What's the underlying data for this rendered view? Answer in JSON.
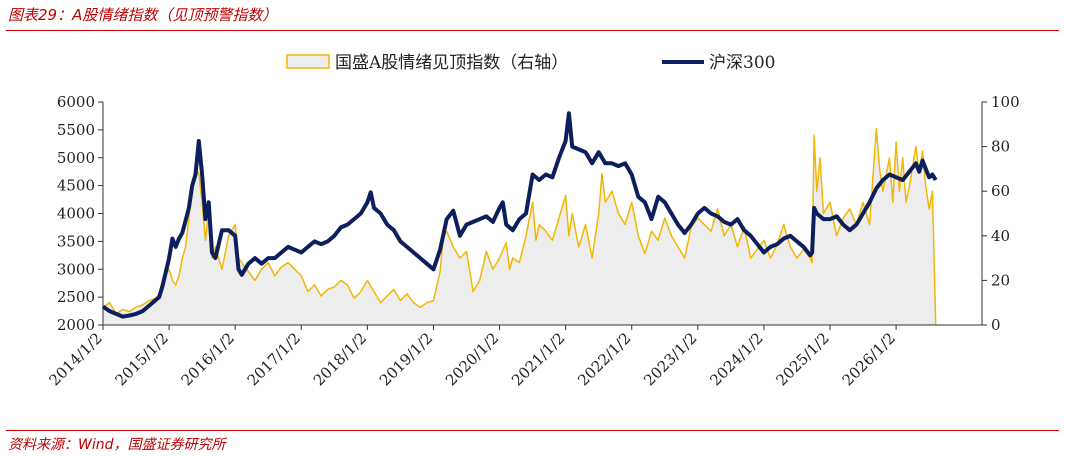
{
  "header": {
    "caption": "图表29：A股情绪指数（见顶预警指数）"
  },
  "footer": {
    "source": "资料来源：Wind，国盛证券研究所"
  },
  "colors": {
    "index_stroke": "#f2b705",
    "index_fill": "#ededed",
    "hs300": "#0b1f5c",
    "rule": "#c00000"
  },
  "chart_data": {
    "type": "line",
    "legend": {
      "placement": "top-center"
    },
    "grid": false,
    "y_left": {
      "min": 2000,
      "max": 6000,
      "ticks": [
        2000,
        2500,
        3000,
        3500,
        4000,
        4500,
        5000,
        5500,
        6000
      ]
    },
    "y_right": {
      "min": 0,
      "max": 100,
      "ticks": [
        0,
        20,
        40,
        60,
        80,
        100
      ]
    },
    "x_range": [
      2014.0,
      2027.3
    ],
    "x_ticks": [
      {
        "label": "2014/1/2",
        "t": 2014.0
      },
      {
        "label": "2015/1/2",
        "t": 2015.0
      },
      {
        "label": "2016/1/2",
        "t": 2016.0
      },
      {
        "label": "2017/1/2",
        "t": 2017.0
      },
      {
        "label": "2018/1/2",
        "t": 2018.0
      },
      {
        "label": "2019/1/2",
        "t": 2019.0
      },
      {
        "label": "2020/1/2",
        "t": 2020.0
      },
      {
        "label": "2021/1/2",
        "t": 2021.0
      },
      {
        "label": "2022/1/2",
        "t": 2022.0
      },
      {
        "label": "2023/1/2",
        "t": 2023.0
      },
      {
        "label": "2024/1/2",
        "t": 2024.0
      },
      {
        "label": "2025/1/2",
        "t": 2025.0
      },
      {
        "label": "2026/1/2",
        "t": 2026.0
      }
    ],
    "series": [
      {
        "name": "国盛A股情绪见顶指数（右轴）",
        "axis": "right",
        "style": "area",
        "points": [
          [
            2014.0,
            8
          ],
          [
            2014.1,
            10
          ],
          [
            2014.2,
            5
          ],
          [
            2014.3,
            7
          ],
          [
            2014.4,
            6
          ],
          [
            2014.5,
            8
          ],
          [
            2014.6,
            9
          ],
          [
            2014.7,
            11
          ],
          [
            2014.8,
            12
          ],
          [
            2014.85,
            14
          ],
          [
            2014.9,
            20
          ],
          [
            2015.0,
            25
          ],
          [
            2015.05,
            20
          ],
          [
            2015.1,
            18
          ],
          [
            2015.15,
            22
          ],
          [
            2015.2,
            30
          ],
          [
            2015.25,
            35
          ],
          [
            2015.3,
            48
          ],
          [
            2015.35,
            60
          ],
          [
            2015.4,
            70
          ],
          [
            2015.45,
            68
          ],
          [
            2015.5,
            55
          ],
          [
            2015.55,
            38
          ],
          [
            2015.6,
            52
          ],
          [
            2015.65,
            30
          ],
          [
            2015.7,
            35
          ],
          [
            2015.8,
            25
          ],
          [
            2015.9,
            40
          ],
          [
            2016.0,
            45
          ],
          [
            2016.05,
            30
          ],
          [
            2016.1,
            28
          ],
          [
            2016.2,
            24
          ],
          [
            2016.3,
            20
          ],
          [
            2016.4,
            25
          ],
          [
            2016.5,
            28
          ],
          [
            2016.6,
            22
          ],
          [
            2016.7,
            26
          ],
          [
            2016.8,
            28
          ],
          [
            2016.9,
            25
          ],
          [
            2017.0,
            22
          ],
          [
            2017.1,
            15
          ],
          [
            2017.2,
            18
          ],
          [
            2017.3,
            13
          ],
          [
            2017.4,
            16
          ],
          [
            2017.5,
            17
          ],
          [
            2017.6,
            20
          ],
          [
            2017.7,
            18
          ],
          [
            2017.8,
            12
          ],
          [
            2017.9,
            15
          ],
          [
            2018.0,
            20
          ],
          [
            2018.1,
            15
          ],
          [
            2018.2,
            10
          ],
          [
            2018.3,
            13
          ],
          [
            2018.4,
            16
          ],
          [
            2018.5,
            11
          ],
          [
            2018.6,
            14
          ],
          [
            2018.7,
            10
          ],
          [
            2018.8,
            8
          ],
          [
            2018.9,
            10
          ],
          [
            2019.0,
            11
          ],
          [
            2019.1,
            24
          ],
          [
            2019.15,
            40
          ],
          [
            2019.2,
            42
          ],
          [
            2019.3,
            35
          ],
          [
            2019.4,
            30
          ],
          [
            2019.5,
            33
          ],
          [
            2019.6,
            15
          ],
          [
            2019.7,
            20
          ],
          [
            2019.8,
            33
          ],
          [
            2019.9,
            25
          ],
          [
            2020.0,
            30
          ],
          [
            2020.1,
            37
          ],
          [
            2020.15,
            25
          ],
          [
            2020.2,
            30
          ],
          [
            2020.3,
            28
          ],
          [
            2020.4,
            40
          ],
          [
            2020.5,
            55
          ],
          [
            2020.55,
            38
          ],
          [
            2020.6,
            45
          ],
          [
            2020.7,
            42
          ],
          [
            2020.8,
            38
          ],
          [
            2020.9,
            48
          ],
          [
            2021.0,
            58
          ],
          [
            2021.05,
            40
          ],
          [
            2021.1,
            50
          ],
          [
            2021.2,
            35
          ],
          [
            2021.3,
            45
          ],
          [
            2021.4,
            30
          ],
          [
            2021.5,
            50
          ],
          [
            2021.55,
            68
          ],
          [
            2021.6,
            55
          ],
          [
            2021.7,
            60
          ],
          [
            2021.8,
            50
          ],
          [
            2021.9,
            45
          ],
          [
            2022.0,
            55
          ],
          [
            2022.1,
            40
          ],
          [
            2022.2,
            32
          ],
          [
            2022.3,
            42
          ],
          [
            2022.4,
            38
          ],
          [
            2022.5,
            48
          ],
          [
            2022.6,
            40
          ],
          [
            2022.7,
            35
          ],
          [
            2022.8,
            30
          ],
          [
            2022.9,
            44
          ],
          [
            2023.0,
            48
          ],
          [
            2023.1,
            45
          ],
          [
            2023.2,
            42
          ],
          [
            2023.3,
            52
          ],
          [
            2023.4,
            40
          ],
          [
            2023.5,
            45
          ],
          [
            2023.6,
            35
          ],
          [
            2023.7,
            44
          ],
          [
            2023.8,
            30
          ],
          [
            2023.9,
            34
          ],
          [
            2024.0,
            38
          ],
          [
            2024.1,
            30
          ],
          [
            2024.2,
            36
          ],
          [
            2024.3,
            45
          ],
          [
            2024.4,
            35
          ],
          [
            2024.5,
            30
          ],
          [
            2024.6,
            34
          ],
          [
            2024.7,
            30
          ],
          [
            2024.73,
            28
          ],
          [
            2024.76,
            85
          ],
          [
            2024.8,
            60
          ],
          [
            2024.85,
            75
          ],
          [
            2024.9,
            50
          ],
          [
            2025.0,
            55
          ],
          [
            2025.1,
            40
          ],
          [
            2025.2,
            48
          ],
          [
            2025.3,
            52
          ],
          [
            2025.4,
            45
          ],
          [
            2025.5,
            55
          ],
          [
            2025.6,
            45
          ],
          [
            2025.7,
            88
          ],
          [
            2025.75,
            70
          ],
          [
            2025.8,
            60
          ],
          [
            2025.9,
            75
          ],
          [
            2025.95,
            55
          ],
          [
            2026.0,
            82
          ],
          [
            2026.05,
            60
          ],
          [
            2026.1,
            75
          ],
          [
            2026.15,
            55
          ],
          [
            2026.2,
            62
          ],
          [
            2026.3,
            80
          ],
          [
            2026.35,
            68
          ],
          [
            2026.4,
            78
          ],
          [
            2026.45,
            62
          ],
          [
            2026.5,
            52
          ],
          [
            2026.55,
            60
          ],
          [
            2026.6,
            0
          ]
        ]
      },
      {
        "name": "沪深300",
        "axis": "left",
        "style": "line",
        "points": [
          [
            2014.0,
            2330
          ],
          [
            2014.1,
            2250
          ],
          [
            2014.2,
            2200
          ],
          [
            2014.3,
            2150
          ],
          [
            2014.4,
            2170
          ],
          [
            2014.5,
            2200
          ],
          [
            2014.6,
            2250
          ],
          [
            2014.7,
            2350
          ],
          [
            2014.8,
            2450
          ],
          [
            2014.85,
            2500
          ],
          [
            2014.9,
            2700
          ],
          [
            2015.0,
            3200
          ],
          [
            2015.05,
            3550
          ],
          [
            2015.1,
            3400
          ],
          [
            2015.15,
            3550
          ],
          [
            2015.2,
            3650
          ],
          [
            2015.3,
            4100
          ],
          [
            2015.35,
            4500
          ],
          [
            2015.4,
            4700
          ],
          [
            2015.45,
            5300
          ],
          [
            2015.5,
            4700
          ],
          [
            2015.55,
            3900
          ],
          [
            2015.6,
            4200
          ],
          [
            2015.65,
            3300
          ],
          [
            2015.7,
            3200
          ],
          [
            2015.8,
            3700
          ],
          [
            2015.9,
            3700
          ],
          [
            2016.0,
            3600
          ],
          [
            2016.05,
            3000
          ],
          [
            2016.1,
            2900
          ],
          [
            2016.2,
            3100
          ],
          [
            2016.3,
            3200
          ],
          [
            2016.4,
            3100
          ],
          [
            2016.5,
            3200
          ],
          [
            2016.6,
            3200
          ],
          [
            2016.7,
            3300
          ],
          [
            2016.8,
            3400
          ],
          [
            2016.9,
            3350
          ],
          [
            2017.0,
            3300
          ],
          [
            2017.1,
            3400
          ],
          [
            2017.2,
            3500
          ],
          [
            2017.3,
            3450
          ],
          [
            2017.4,
            3500
          ],
          [
            2017.5,
            3600
          ],
          [
            2017.6,
            3750
          ],
          [
            2017.7,
            3800
          ],
          [
            2017.8,
            3900
          ],
          [
            2017.9,
            4000
          ],
          [
            2018.0,
            4200
          ],
          [
            2018.05,
            4380
          ],
          [
            2018.1,
            4100
          ],
          [
            2018.2,
            4000
          ],
          [
            2018.3,
            3800
          ],
          [
            2018.4,
            3700
          ],
          [
            2018.5,
            3500
          ],
          [
            2018.6,
            3400
          ],
          [
            2018.7,
            3300
          ],
          [
            2018.8,
            3200
          ],
          [
            2018.9,
            3100
          ],
          [
            2019.0,
            3000
          ],
          [
            2019.1,
            3350
          ],
          [
            2019.2,
            3900
          ],
          [
            2019.3,
            4050
          ],
          [
            2019.4,
            3600
          ],
          [
            2019.5,
            3800
          ],
          [
            2019.6,
            3850
          ],
          [
            2019.7,
            3900
          ],
          [
            2019.8,
            3950
          ],
          [
            2019.9,
            3850
          ],
          [
            2020.0,
            4100
          ],
          [
            2020.05,
            4200
          ],
          [
            2020.1,
            3800
          ],
          [
            2020.2,
            3700
          ],
          [
            2020.3,
            3900
          ],
          [
            2020.4,
            4000
          ],
          [
            2020.5,
            4700
          ],
          [
            2020.6,
            4600
          ],
          [
            2020.7,
            4700
          ],
          [
            2020.8,
            4650
          ],
          [
            2020.9,
            5000
          ],
          [
            2021.0,
            5300
          ],
          [
            2021.05,
            5800
          ],
          [
            2021.1,
            5200
          ],
          [
            2021.2,
            5150
          ],
          [
            2021.3,
            5100
          ],
          [
            2021.4,
            4900
          ],
          [
            2021.5,
            5100
          ],
          [
            2021.6,
            4900
          ],
          [
            2021.7,
            4900
          ],
          [
            2021.8,
            4850
          ],
          [
            2021.9,
            4900
          ],
          [
            2022.0,
            4700
          ],
          [
            2022.1,
            4300
          ],
          [
            2022.2,
            4200
          ],
          [
            2022.3,
            3900
          ],
          [
            2022.4,
            4300
          ],
          [
            2022.5,
            4200
          ],
          [
            2022.6,
            4000
          ],
          [
            2022.7,
            3800
          ],
          [
            2022.8,
            3650
          ],
          [
            2022.9,
            3800
          ],
          [
            2023.0,
            4000
          ],
          [
            2023.1,
            4100
          ],
          [
            2023.2,
            4000
          ],
          [
            2023.3,
            3950
          ],
          [
            2023.4,
            3850
          ],
          [
            2023.5,
            3800
          ],
          [
            2023.6,
            3900
          ],
          [
            2023.7,
            3700
          ],
          [
            2023.8,
            3600
          ],
          [
            2023.9,
            3450
          ],
          [
            2024.0,
            3300
          ],
          [
            2024.1,
            3400
          ],
          [
            2024.2,
            3450
          ],
          [
            2024.3,
            3550
          ],
          [
            2024.4,
            3600
          ],
          [
            2024.5,
            3500
          ],
          [
            2024.6,
            3400
          ],
          [
            2024.7,
            3250
          ],
          [
            2024.73,
            3300
          ],
          [
            2024.76,
            4100
          ],
          [
            2024.8,
            4000
          ],
          [
            2024.9,
            3900
          ],
          [
            2025.0,
            3900
          ],
          [
            2025.1,
            3950
          ],
          [
            2025.2,
            3800
          ],
          [
            2025.3,
            3700
          ],
          [
            2025.4,
            3800
          ],
          [
            2025.5,
            4000
          ],
          [
            2025.6,
            4200
          ],
          [
            2025.7,
            4450
          ],
          [
            2025.8,
            4600
          ],
          [
            2025.9,
            4700
          ],
          [
            2026.0,
            4650
          ],
          [
            2026.1,
            4600
          ],
          [
            2026.2,
            4750
          ],
          [
            2026.3,
            4900
          ],
          [
            2026.35,
            4750
          ],
          [
            2026.4,
            4950
          ],
          [
            2026.45,
            4800
          ],
          [
            2026.5,
            4650
          ],
          [
            2026.55,
            4700
          ],
          [
            2026.6,
            4600
          ]
        ]
      }
    ]
  }
}
